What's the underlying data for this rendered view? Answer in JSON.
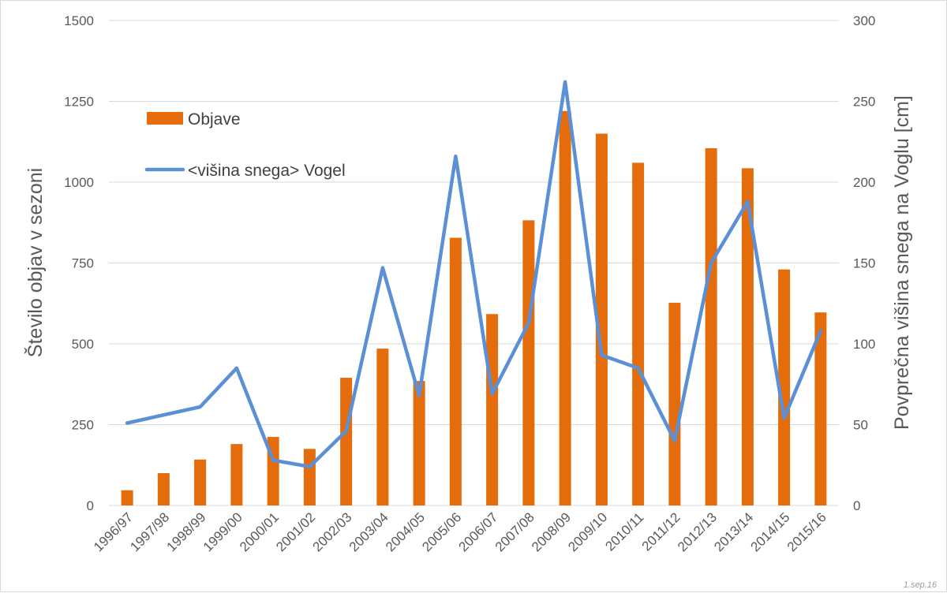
{
  "chart_data": {
    "type": "bar",
    "categories": [
      "1996/97",
      "1997/98",
      "1998/99",
      "1999/00",
      "2000/01",
      "2001/02",
      "2002/03",
      "2003/04",
      "2004/05",
      "2005/06",
      "2006/07",
      "2007/08",
      "2008/09",
      "2009/10",
      "2010/11",
      "2011/12",
      "2012/13",
      "2013/14",
      "2014/15",
      "2015/16"
    ],
    "series": [
      {
        "name": "Objave",
        "type": "bar",
        "axis": "left",
        "color": "#e46c0a",
        "values": [
          47,
          100,
          142,
          190,
          212,
          175,
          395,
          485,
          385,
          828,
          592,
          882,
          1220,
          1150,
          1060,
          627,
          1105,
          1043,
          730,
          597
        ]
      },
      {
        "name": "<višina snega> Vogel",
        "type": "line",
        "axis": "right",
        "color": "#5b8fd6",
        "values": [
          51,
          56,
          61,
          85,
          28,
          24,
          46,
          147,
          68,
          216,
          69,
          113,
          262,
          93,
          85,
          40,
          150,
          188,
          54,
          108
        ]
      }
    ],
    "ylabel": "Število objav v sezoni",
    "y2label": "Povprečna višina snega na Voglu [cm]",
    "ylim": [
      0,
      1500
    ],
    "y2lim": [
      0,
      300
    ],
    "yticks": [
      "0",
      "250",
      "500",
      "750",
      "1000",
      "1250",
      "1500"
    ],
    "y2ticks": [
      "0",
      "50",
      "100",
      "150",
      "200",
      "250",
      "300"
    ],
    "grid": true,
    "legend": "top-left",
    "footnote": "1.sep.16"
  }
}
